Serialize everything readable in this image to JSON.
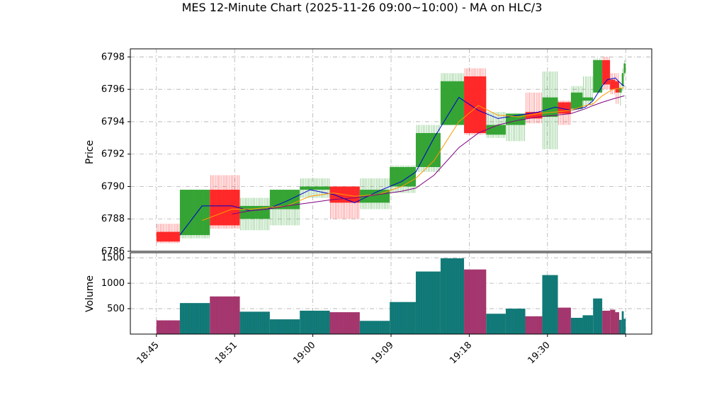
{
  "chart_data": {
    "type": "candlestick",
    "title": "MES 12-Minute Chart (2025-11-26 09:00~10:00) - MA on HLC/3",
    "price_panel": {
      "ylabel": "Price",
      "ylim": [
        6786,
        6798.5
      ],
      "yticks": [
        6786,
        6788,
        6790,
        6792,
        6794,
        6796,
        6798
      ],
      "grid": true
    },
    "volume_panel": {
      "ylabel": "Volume",
      "ylim": [
        0,
        1600
      ],
      "yticks": [
        500,
        1000,
        1500
      ],
      "grid": true
    },
    "x_ticks": [
      "18:45",
      "18:51",
      "19:00",
      "19:09",
      "19:18",
      "19:30"
    ],
    "x_tick_minutes": [
      0,
      6,
      12,
      18,
      24,
      30
    ],
    "x_range_minutes": [
      -2,
      38
    ],
    "bars": [
      {
        "t": 0.0,
        "w": 1.8,
        "o": 6787.2,
        "h": 6787.7,
        "l": 6786.5,
        "c": 6786.6,
        "v": 270
      },
      {
        "t": 1.8,
        "w": 2.3,
        "o": 6787.0,
        "h": 6789.8,
        "l": 6786.8,
        "c": 6789.8,
        "v": 610
      },
      {
        "t": 4.1,
        "w": 2.3,
        "o": 6789.8,
        "h": 6790.7,
        "l": 6787.4,
        "c": 6787.6,
        "v": 740
      },
      {
        "t": 6.4,
        "w": 2.3,
        "o": 6788.0,
        "h": 6789.3,
        "l": 6787.3,
        "c": 6788.8,
        "v": 440
      },
      {
        "t": 8.7,
        "w": 2.3,
        "o": 6788.6,
        "h": 6789.8,
        "l": 6787.6,
        "c": 6789.8,
        "v": 290
      },
      {
        "t": 11.0,
        "w": 2.3,
        "o": 6789.8,
        "h": 6790.5,
        "l": 6789.3,
        "c": 6790.0,
        "v": 460
      },
      {
        "t": 13.3,
        "w": 2.3,
        "o": 6790.0,
        "h": 6790.0,
        "l": 6788.0,
        "c": 6789.0,
        "v": 430
      },
      {
        "t": 15.6,
        "w": 2.3,
        "o": 6789.0,
        "h": 6790.5,
        "l": 6788.6,
        "c": 6789.8,
        "v": 260
      },
      {
        "t": 17.9,
        "w": 2.0,
        "o": 6790.0,
        "h": 6791.3,
        "l": 6789.6,
        "c": 6791.2,
        "v": 630
      },
      {
        "t": 19.9,
        "w": 1.9,
        "o": 6791.2,
        "h": 6793.8,
        "l": 6790.9,
        "c": 6793.3,
        "v": 1230
      },
      {
        "t": 21.8,
        "w": 1.8,
        "o": 6793.8,
        "h": 6797.0,
        "l": 6793.8,
        "c": 6796.5,
        "v": 1490
      },
      {
        "t": 23.6,
        "w": 1.7,
        "o": 6796.8,
        "h": 6797.3,
        "l": 6793.2,
        "c": 6793.3,
        "v": 1270
      },
      {
        "t": 25.3,
        "w": 1.5,
        "o": 6793.2,
        "h": 6794.6,
        "l": 6793.0,
        "c": 6793.8,
        "v": 400
      },
      {
        "t": 26.8,
        "w": 1.5,
        "o": 6793.8,
        "h": 6794.5,
        "l": 6792.8,
        "c": 6794.5,
        "v": 500
      },
      {
        "t": 28.3,
        "w": 1.3,
        "o": 6794.6,
        "h": 6795.8,
        "l": 6793.9,
        "c": 6794.2,
        "v": 350
      },
      {
        "t": 29.6,
        "w": 1.2,
        "o": 6794.3,
        "h": 6797.1,
        "l": 6792.3,
        "c": 6795.5,
        "v": 1160
      },
      {
        "t": 30.8,
        "w": 1.0,
        "o": 6795.2,
        "h": 6795.3,
        "l": 6793.8,
        "c": 6794.5,
        "v": 520
      },
      {
        "t": 31.8,
        "w": 0.9,
        "o": 6794.8,
        "h": 6796.2,
        "l": 6794.7,
        "c": 6795.8,
        "v": 320
      },
      {
        "t": 32.7,
        "w": 0.8,
        "o": 6795.3,
        "h": 6796.8,
        "l": 6795.0,
        "c": 6795.5,
        "v": 370
      },
      {
        "t": 33.5,
        "w": 0.7,
        "o": 6795.8,
        "h": 6797.9,
        "l": 6795.8,
        "c": 6797.8,
        "v": 700
      },
      {
        "t": 34.2,
        "w": 0.6,
        "o": 6797.8,
        "h": 6798.0,
        "l": 6796.0,
        "c": 6796.3,
        "v": 460
      },
      {
        "t": 34.8,
        "w": 0.4,
        "o": 6796.6,
        "h": 6797.0,
        "l": 6795.7,
        "c": 6796.0,
        "v": 480
      },
      {
        "t": 35.2,
        "w": 0.3,
        "o": 6796.5,
        "h": 6797.0,
        "l": 6795.1,
        "c": 6795.8,
        "v": 430
      },
      {
        "t": 35.5,
        "w": 0.2,
        "o": 6795.8,
        "h": 6796.3,
        "l": 6795.0,
        "c": 6796.1,
        "v": 280
      },
      {
        "t": 35.7,
        "w": 0.15,
        "o": 6796.2,
        "h": 6797.3,
        "l": 6795.9,
        "c": 6797.0,
        "v": 450
      },
      {
        "t": 35.85,
        "w": 0.15,
        "o": 6797.0,
        "h": 6797.8,
        "l": 6796.8,
        "c": 6797.6,
        "v": 300
      }
    ],
    "ma_series": [
      {
        "color": "#0000cc",
        "x": [
          1.8,
          3.5,
          5.8,
          7.2,
          8.5,
          10.0,
          11.8,
          13.6,
          15.2,
          17.0,
          18.8,
          19.9,
          21.3,
          23.2,
          24.7,
          26.2,
          27.8,
          29.3,
          30.6,
          31.8,
          32.9,
          33.5,
          34.2,
          34.6,
          35.2,
          35.7,
          35.9
        ],
        "y": [
          6787.0,
          6788.8,
          6788.8,
          6788.5,
          6788.6,
          6789.1,
          6789.8,
          6789.5,
          6789.0,
          6789.7,
          6790.3,
          6790.9,
          6793.0,
          6795.5,
          6794.7,
          6794.2,
          6794.4,
          6794.6,
          6794.9,
          6794.7,
          6794.9,
          6795.3,
          6796.2,
          6796.6,
          6796.7,
          6796.3,
          6796.2
        ]
      },
      {
        "color": "#ff9900",
        "x": [
          3.5,
          5.8,
          7.2,
          8.5,
          10.0,
          11.8,
          13.6,
          15.2,
          17.0,
          18.8,
          19.9,
          21.3,
          23.2,
          24.7,
          26.2,
          27.8,
          29.3,
          30.6,
          31.8,
          32.9,
          33.5,
          34.2,
          35.0,
          35.9
        ],
        "y": [
          6787.9,
          6788.6,
          6788.6,
          6788.7,
          6788.8,
          6789.4,
          6789.6,
          6789.4,
          6789.5,
          6790.0,
          6790.5,
          6791.6,
          6794.0,
          6795.0,
          6794.4,
          6794.3,
          6794.5,
          6794.6,
          6794.7,
          6795.0,
          6795.1,
          6795.6,
          6796.0,
          6796.1
        ]
      },
      {
        "color": "#800080",
        "x": [
          5.8,
          7.2,
          8.5,
          10.0,
          11.8,
          13.6,
          15.2,
          17.0,
          18.8,
          19.9,
          21.3,
          23.2,
          24.7,
          26.2,
          27.8,
          29.3,
          30.6,
          31.8,
          32.9,
          33.5,
          34.2,
          35.0,
          35.9
        ],
        "y": [
          6788.3,
          6788.5,
          6788.6,
          6788.8,
          6789.0,
          6789.2,
          6789.3,
          6789.5,
          6789.7,
          6789.9,
          6790.7,
          6792.4,
          6793.3,
          6793.8,
          6794.1,
          6794.3,
          6794.4,
          6794.5,
          6794.8,
          6795.0,
          6795.2,
          6795.4,
          6795.6
        ]
      }
    ],
    "colors": {
      "up": "#2ca02c",
      "down": "#ff2020",
      "vol_up_edge": "#1f77b4",
      "vol_down_edge": "#9c27b0",
      "vol_up_fill": "#0f7a6a",
      "vol_down_fill": "#a63a5f",
      "grid": "#b0b0b0"
    }
  }
}
